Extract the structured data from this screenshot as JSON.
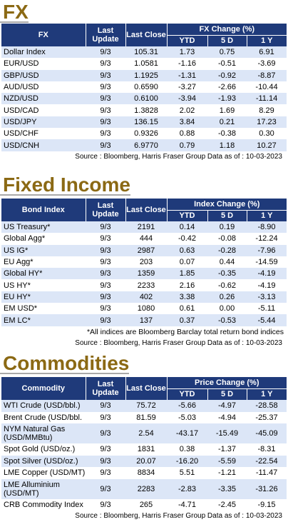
{
  "fx": {
    "title": "FX",
    "headers": {
      "name": "FX",
      "last_update": "Last Update",
      "last_close": "Last Close",
      "group": "FX Change (%)",
      "ytd": "YTD",
      "5d": "5 D",
      "1y": "1 Y"
    },
    "rows": [
      {
        "name": "Dollar Index",
        "update": "9/3",
        "close": "105.31",
        "ytd": "1.73",
        "d5": "0.75",
        "y1": "6.91"
      },
      {
        "name": "EUR/USD",
        "update": "9/3",
        "close": "1.0581",
        "ytd": "-1.16",
        "d5": "-0.51",
        "y1": "-3.69"
      },
      {
        "name": "GBP/USD",
        "update": "9/3",
        "close": "1.1925",
        "ytd": "-1.31",
        "d5": "-0.92",
        "y1": "-8.87"
      },
      {
        "name": "AUD/USD",
        "update": "9/3",
        "close": "0.6590",
        "ytd": "-3.27",
        "d5": "-2.66",
        "y1": "-10.44"
      },
      {
        "name": "NZD/USD",
        "update": "9/3",
        "close": "0.6100",
        "ytd": "-3.94",
        "d5": "-1.93",
        "y1": "-11.14"
      },
      {
        "name": "USD/CAD",
        "update": "9/3",
        "close": "1.3828",
        "ytd": "2.02",
        "d5": "1.69",
        "y1": "8.29"
      },
      {
        "name": "USD/JPY",
        "update": "9/3",
        "close": "136.15",
        "ytd": "3.84",
        "d5": "0.21",
        "y1": "17.23"
      },
      {
        "name": "USD/CHF",
        "update": "9/3",
        "close": "0.9326",
        "ytd": "0.88",
        "d5": "-0.38",
        "y1": "0.30"
      },
      {
        "name": "USD/CNH",
        "update": "9/3",
        "close": "6.9770",
        "ytd": "0.79",
        "d5": "1.18",
        "y1": "10.27"
      }
    ],
    "source": "Source : Bloomberg, Harris Fraser Group Data as of : 10-03-2023"
  },
  "fixed_income": {
    "title": "Fixed Income",
    "headers": {
      "name": "Bond Index",
      "last_update": "Last Update",
      "last_close": "Last Close",
      "group": "Index Change (%)",
      "ytd": "YTD",
      "5d": "5 D",
      "1y": "1 Y"
    },
    "rows": [
      {
        "name": "US Treasury*",
        "update": "9/3",
        "close": "2191",
        "ytd": "0.14",
        "d5": "0.19",
        "y1": "-8.90"
      },
      {
        "name": "Global Agg*",
        "update": "9/3",
        "close": "444",
        "ytd": "-0.42",
        "d5": "-0.08",
        "y1": "-12.24"
      },
      {
        "name": "US IG*",
        "update": "9/3",
        "close": "2987",
        "ytd": "0.63",
        "d5": "-0.28",
        "y1": "-7.96"
      },
      {
        "name": "EU Agg*",
        "update": "9/3",
        "close": "203",
        "ytd": "0.07",
        "d5": "0.44",
        "y1": "-14.59"
      },
      {
        "name": "Global HY*",
        "update": "9/3",
        "close": "1359",
        "ytd": "1.85",
        "d5": "-0.35",
        "y1": "-4.19"
      },
      {
        "name": "US HY*",
        "update": "9/3",
        "close": "2233",
        "ytd": "2.16",
        "d5": "-0.62",
        "y1": "-4.19"
      },
      {
        "name": "EU HY*",
        "update": "9/3",
        "close": "402",
        "ytd": "3.38",
        "d5": "0.26",
        "y1": "-3.13"
      },
      {
        "name": "EM USD*",
        "update": "9/3",
        "close": "1080",
        "ytd": "0.61",
        "d5": "0.00",
        "y1": "-5.11"
      },
      {
        "name": "EM LC*",
        "update": "9/3",
        "close": "137",
        "ytd": "0.37",
        "d5": "-0.53",
        "y1": "-5.44"
      }
    ],
    "note": "*All indices are Bloomberg Barclay total return bond indices",
    "source": "Source : Bloomberg, Harris Fraser Group Data as of : 10-03-2023"
  },
  "commodities": {
    "title": "Commodities",
    "headers": {
      "name": "Commodity",
      "last_update": "Last Update",
      "last_close": "Last Close",
      "group": "Price Change (%)",
      "ytd": "YTD",
      "5d": "5 D",
      "1y": "1 Y"
    },
    "rows": [
      {
        "name": "WTI Crude (USD/bbl.)",
        "update": "9/3",
        "close": "75.72",
        "ytd": "-5.66",
        "d5": "-4.97",
        "y1": "-28.58"
      },
      {
        "name": "Brent Crude (USD/bbl.",
        "update": "9/3",
        "close": "81.59",
        "ytd": "-5.03",
        "d5": "-4.94",
        "y1": "-25.37"
      },
      {
        "name": "NYM Natural Gas (USD/MMBtu)",
        "update": "9/3",
        "close": "2.54",
        "ytd": "-43.17",
        "d5": "-15.49",
        "y1": "-45.09"
      },
      {
        "name": "Spot Gold (USD/oz.)",
        "update": "9/3",
        "close": "1831",
        "ytd": "0.38",
        "d5": "-1.37",
        "y1": "-8.31"
      },
      {
        "name": "Spot Silver  (USD/oz.)",
        "update": "9/3",
        "close": "20.07",
        "ytd": "-16.20",
        "d5": "-5.59",
        "y1": "-22.54"
      },
      {
        "name": "LME Copper  (USD/MT)",
        "update": "9/3",
        "close": "8834",
        "ytd": "5.51",
        "d5": "-1.21",
        "y1": "-11.47"
      },
      {
        "name": "LME Alluminium (USD/MT)",
        "update": "9/3",
        "close": "2283",
        "ytd": "-2.83",
        "d5": "-3.35",
        "y1": "-31.26"
      },
      {
        "name": "CRB Commodity Index",
        "update": "9/3",
        "close": "265",
        "ytd": "-4.71",
        "d5": "-2.45",
        "y1": "-9.15"
      }
    ],
    "source": "Source : Bloomberg, Harris Fraser Group Data as of : 10-03-2023"
  }
}
